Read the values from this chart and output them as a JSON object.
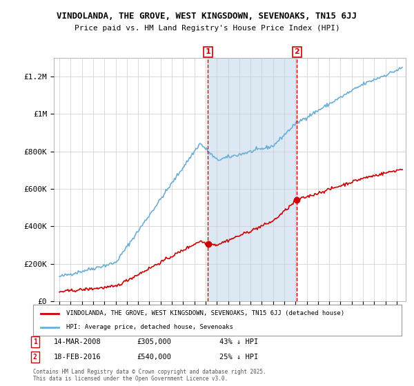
{
  "title_line1": "VINDOLANDA, THE GROVE, WEST KINGSDOWN, SEVENOAKS, TN15 6JJ",
  "title_line2": "Price paid vs. HM Land Registry's House Price Index (HPI)",
  "ylim": [
    0,
    1300000
  ],
  "yticks": [
    0,
    200000,
    400000,
    600000,
    800000,
    1000000,
    1200000
  ],
  "ytick_labels": [
    "£0",
    "£200K",
    "£400K",
    "£600K",
    "£800K",
    "£1M",
    "£1.2M"
  ],
  "xlabel": "",
  "legend_line1": "VINDOLANDA, THE GROVE, WEST KINGSDOWN, SEVENOAKS, TN15 6JJ (detached house)",
  "legend_line2": "HPI: Average price, detached house, Sevenoaks",
  "marker1_date": "14-MAR-2008",
  "marker1_price": 305000,
  "marker1_hpi_diff": "43% ↓ HPI",
  "marker1_label": "1",
  "marker2_date": "18-FEB-2016",
  "marker2_price": 540000,
  "marker2_hpi_diff": "25% ↓ HPI",
  "marker2_label": "2",
  "footnote": "Contains HM Land Registry data © Crown copyright and database right 2025.\nThis data is licensed under the Open Government Licence v3.0.",
  "red_color": "#cc0000",
  "blue_color": "#6baed6",
  "shaded_color": "#dce9f5",
  "marker_vline_color": "#cc0000",
  "background_color": "#ffffff",
  "grid_color": "#cccccc"
}
